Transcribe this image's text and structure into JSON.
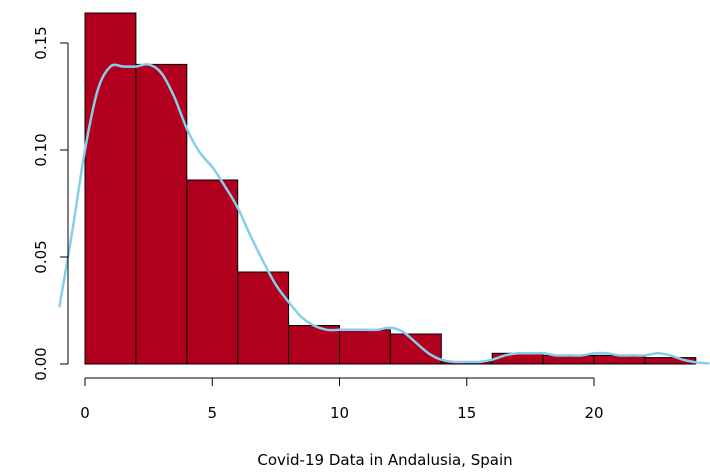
{
  "chart_data": {
    "type": "bar",
    "subtype": "histogram-with-density",
    "title": "",
    "xlabel": "Covid-19 Data in Andalusia, Spain",
    "ylabel": "",
    "bins": [
      {
        "start": 0,
        "end": 2,
        "density": 0.164
      },
      {
        "start": 2,
        "end": 4,
        "density": 0.14
      },
      {
        "start": 4,
        "end": 6,
        "density": 0.086
      },
      {
        "start": 6,
        "end": 8,
        "density": 0.043
      },
      {
        "start": 8,
        "end": 10,
        "density": 0.018
      },
      {
        "start": 10,
        "end": 12,
        "density": 0.016
      },
      {
        "start": 12,
        "end": 14,
        "density": 0.014
      },
      {
        "start": 14,
        "end": 16,
        "density": 0.001
      },
      {
        "start": 16,
        "end": 18,
        "density": 0.005
      },
      {
        "start": 18,
        "end": 20,
        "density": 0.004
      },
      {
        "start": 20,
        "end": 22,
        "density": 0.004
      },
      {
        "start": 22,
        "end": 24,
        "density": 0.003
      }
    ],
    "density_curve": {
      "x": [
        -1,
        -0.5,
        0,
        0.5,
        1,
        1.5,
        2,
        2.5,
        3,
        3.5,
        4,
        4.5,
        5,
        5.5,
        6,
        6.5,
        7,
        7.5,
        8,
        8.5,
        9,
        9.5,
        10,
        10.5,
        11,
        11.5,
        12,
        12.5,
        13,
        13.5,
        14,
        14.5,
        15,
        15.5,
        16,
        16.5,
        17,
        17.5,
        18,
        18.5,
        19,
        19.5,
        20,
        20.5,
        21,
        21.5,
        22,
        22.5,
        23,
        23.5,
        24,
        24.5
      ],
      "y": [
        0.027,
        0.062,
        0.1,
        0.128,
        0.139,
        0.139,
        0.139,
        0.14,
        0.136,
        0.125,
        0.11,
        0.099,
        0.092,
        0.083,
        0.073,
        0.06,
        0.048,
        0.037,
        0.029,
        0.022,
        0.018,
        0.016,
        0.016,
        0.016,
        0.016,
        0.016,
        0.017,
        0.015,
        0.01,
        0.005,
        0.002,
        0.001,
        0.001,
        0.001,
        0.002,
        0.004,
        0.005,
        0.005,
        0.005,
        0.004,
        0.004,
        0.004,
        0.005,
        0.005,
        0.004,
        0.004,
        0.004,
        0.005,
        0.004,
        0.002,
        0.0008,
        0.0003
      ]
    },
    "x_ticks": [
      0,
      5,
      10,
      15,
      20
    ],
    "x_tick_labels": [
      "0",
      "5",
      "10",
      "15",
      "20"
    ],
    "y_ticks": [
      0.0,
      0.05,
      0.1,
      0.15
    ],
    "y_tick_labels": [
      "0.00",
      "0.05",
      "0.10",
      "0.15"
    ],
    "xlim": [
      -1.1,
      24.7
    ],
    "ylim": [
      0,
      0.164
    ],
    "bar_color": "#B0001E",
    "bar_edge_color": "#000000",
    "curve_color": "#87CEEB",
    "grid": false,
    "legend": "none"
  }
}
